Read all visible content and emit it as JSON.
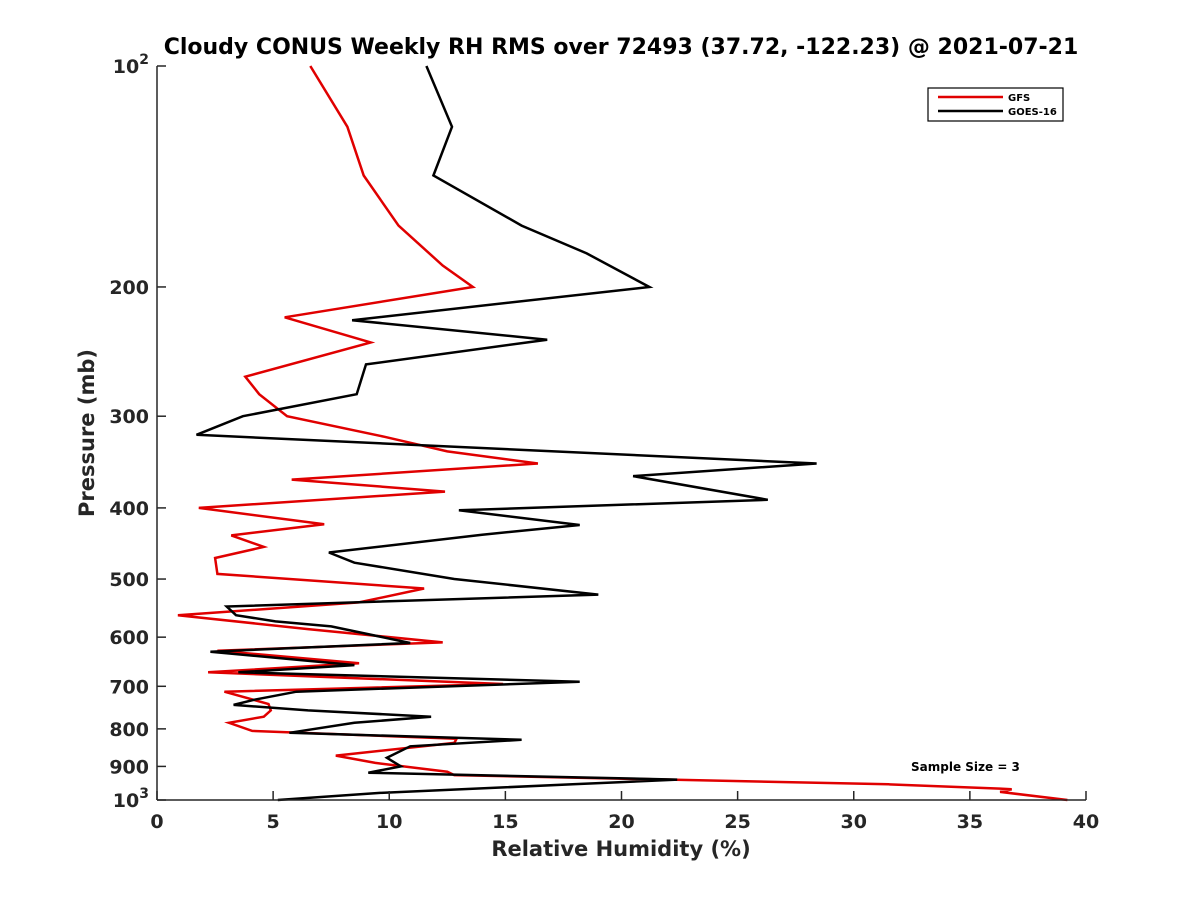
{
  "chart_data": {
    "type": "line",
    "title": "Cloudy CONUS Weekly RH RMS over 72493 (37.72, -122.23) @ 2021-07-21",
    "xlabel": "Relative Humidity (%)",
    "ylabel": "Pressure (mb)",
    "xlim": [
      0,
      40
    ],
    "ylim": [
      100,
      1000
    ],
    "y_scale": "log",
    "y_reversed": true,
    "x_ticks": [
      "0",
      "5",
      "10",
      "15",
      "20",
      "25",
      "30",
      "35",
      "40"
    ],
    "y_ticks": [
      {
        "value": 100,
        "label": "10",
        "sup": "2"
      },
      {
        "value": 200,
        "label": "200"
      },
      {
        "value": 300,
        "label": "300"
      },
      {
        "value": 400,
        "label": "400"
      },
      {
        "value": 500,
        "label": "500"
      },
      {
        "value": 600,
        "label": "600"
      },
      {
        "value": 700,
        "label": "700"
      },
      {
        "value": 800,
        "label": "800"
      },
      {
        "value": 900,
        "label": "900"
      },
      {
        "value": 1000,
        "label": "10",
        "sup": "3"
      }
    ],
    "grid": false,
    "legend_position": "top-right",
    "annotation": "Sample Size = 3",
    "series": [
      {
        "name": "GFS",
        "color": "#e00000",
        "points": [
          [
            6.6,
            100
          ],
          [
            8.2,
            121
          ],
          [
            8.9,
            141
          ],
          [
            10.4,
            165
          ],
          [
            12.3,
            187
          ],
          [
            13.6,
            200
          ],
          [
            5.5,
            220
          ],
          [
            9.2,
            238
          ],
          [
            3.8,
            265
          ],
          [
            4.4,
            280
          ],
          [
            5.6,
            300
          ],
          [
            9.8,
            320
          ],
          [
            12.5,
            335
          ],
          [
            16.4,
            348
          ],
          [
            5.8,
            366
          ],
          [
            12.4,
            380
          ],
          [
            1.8,
            400
          ],
          [
            7.2,
            421
          ],
          [
            3.2,
            436
          ],
          [
            4.6,
            452
          ],
          [
            2.5,
            468
          ],
          [
            2.6,
            492
          ],
          [
            11.5,
            515
          ],
          [
            8.7,
            538
          ],
          [
            0.9,
            560
          ],
          [
            6.5,
            585
          ],
          [
            12.3,
            610
          ],
          [
            2.6,
            626
          ],
          [
            8.7,
            651
          ],
          [
            2.2,
            670
          ],
          [
            14.9,
            695
          ],
          [
            2.9,
            712
          ],
          [
            4.8,
            740
          ],
          [
            4.9,
            755
          ],
          [
            4.6,
            770
          ],
          [
            3.1,
            785
          ],
          [
            4.1,
            805
          ],
          [
            12.9,
            825
          ],
          [
            12.8,
            836
          ],
          [
            7.7,
            870
          ],
          [
            9.4,
            890
          ],
          [
            12.5,
            915
          ],
          [
            12.8,
            925
          ],
          [
            31.5,
            952
          ],
          [
            36.3,
            965
          ],
          [
            36.8,
            967
          ],
          [
            36.3,
            975
          ],
          [
            39.2,
            1000
          ]
        ]
      },
      {
        "name": "GOES-16",
        "color": "#000000",
        "points": [
          [
            11.6,
            100
          ],
          [
            12.7,
            121
          ],
          [
            11.9,
            141
          ],
          [
            15.7,
            165
          ],
          [
            18.5,
            180
          ],
          [
            21.2,
            200
          ],
          [
            8.4,
            222
          ],
          [
            16.8,
            236
          ],
          [
            9.0,
            255
          ],
          [
            8.6,
            280
          ],
          [
            3.7,
            300
          ],
          [
            1.7,
            318
          ],
          [
            28.4,
            348
          ],
          [
            20.5,
            362
          ],
          [
            26.3,
            390
          ],
          [
            13.0,
            403
          ],
          [
            18.2,
            422
          ],
          [
            14.0,
            435
          ],
          [
            7.4,
            460
          ],
          [
            8.5,
            475
          ],
          [
            12.8,
            500
          ],
          [
            19.0,
            525
          ],
          [
            3.0,
            545
          ],
          [
            3.4,
            560
          ],
          [
            5.1,
            571
          ],
          [
            7.5,
            580
          ],
          [
            10.9,
            611
          ],
          [
            2.3,
            628
          ],
          [
            8.5,
            655
          ],
          [
            3.5,
            670
          ],
          [
            18.2,
            690
          ],
          [
            6.0,
            712
          ],
          [
            4.2,
            730
          ],
          [
            3.3,
            742
          ],
          [
            6.5,
            755
          ],
          [
            11.8,
            770
          ],
          [
            8.5,
            785
          ],
          [
            5.7,
            810
          ],
          [
            15.7,
            828
          ],
          [
            10.9,
            845
          ],
          [
            9.9,
            876
          ],
          [
            10.5,
            900
          ],
          [
            9.1,
            918
          ],
          [
            22.4,
            938
          ],
          [
            17.9,
            952
          ],
          [
            9.6,
            978
          ],
          [
            5.2,
            1000
          ]
        ]
      }
    ]
  }
}
